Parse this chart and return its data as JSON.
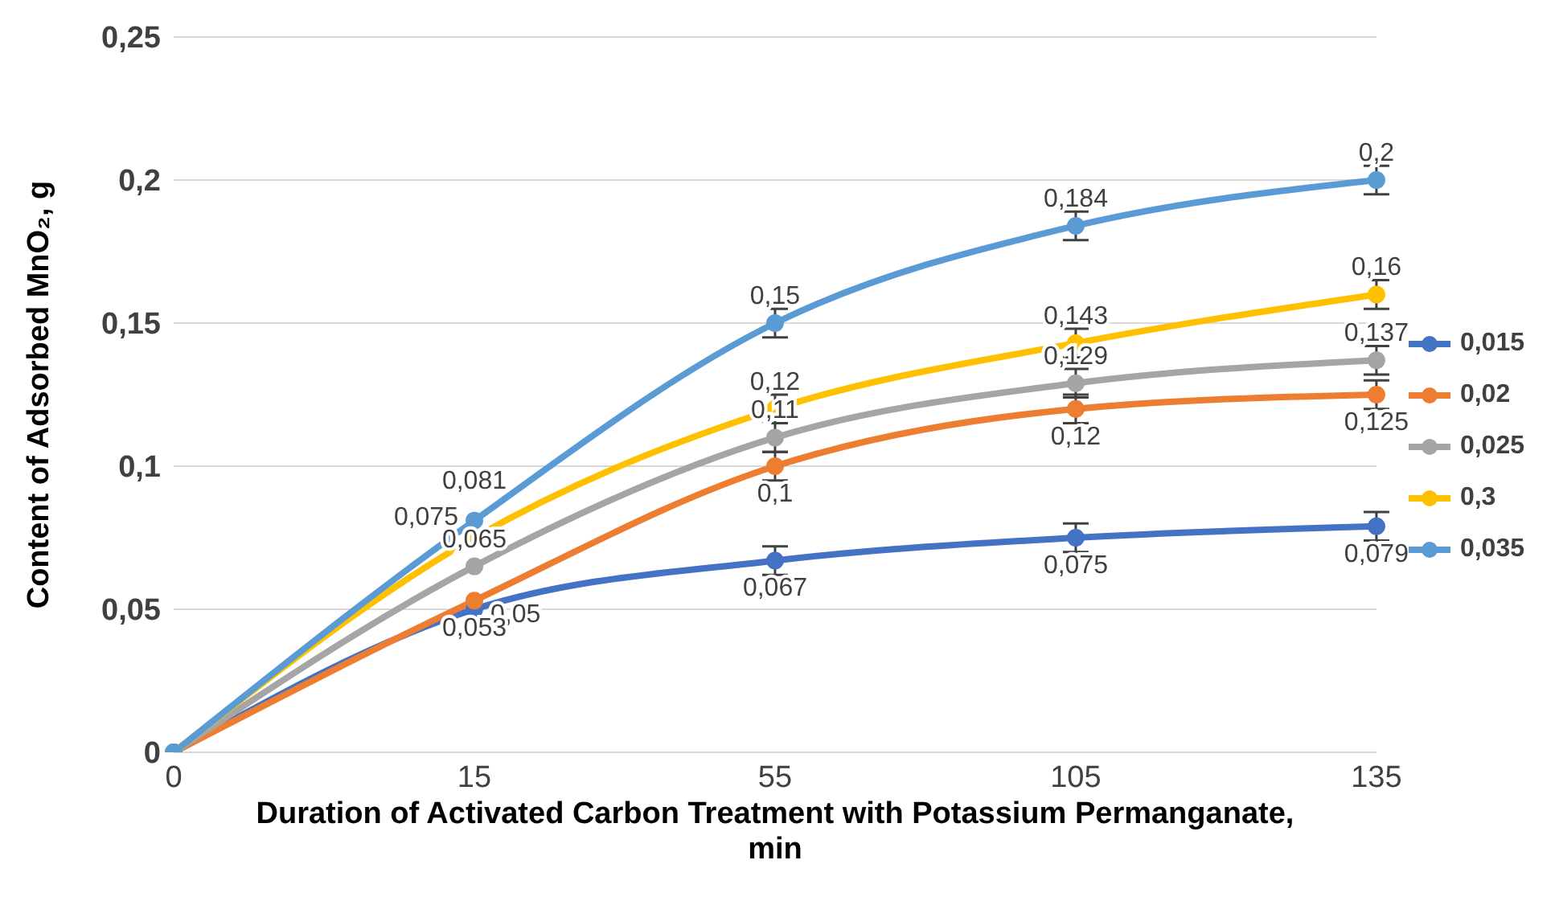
{
  "chart_data": {
    "type": "line",
    "xlabel": "Duration of Activated Carbon Treatment with Potassium Permanganate, min",
    "ylabel": "Content of Adsorbed MnO₂, g",
    "categories": [
      "0",
      "15",
      "55",
      "105",
      "135"
    ],
    "series": [
      {
        "name": "0,015",
        "color": "#4472c4",
        "values": [
          0,
          0.05,
          0.067,
          0.075,
          0.079
        ],
        "value_labels": [
          null,
          "0,05",
          "0,067",
          "0,075",
          "0,079"
        ],
        "errors": [
          null,
          null,
          0.005,
          0.005,
          0.005
        ]
      },
      {
        "name": "0,02",
        "color": "#ed7d31",
        "values": [
          0,
          0.053,
          0.1,
          0.12,
          0.125
        ],
        "value_labels": [
          null,
          "0,053",
          "0,1",
          "0,12",
          "0,125"
        ],
        "errors": [
          null,
          null,
          0.005,
          0.005,
          0.005
        ]
      },
      {
        "name": "0,025",
        "color": "#a5a5a5",
        "values": [
          0,
          0.065,
          0.11,
          0.129,
          0.137
        ],
        "value_labels": [
          null,
          "0,065",
          "0,11",
          "0,129",
          "0,137"
        ],
        "errors": [
          null,
          null,
          0.005,
          0.005,
          0.005
        ]
      },
      {
        "name": "0,3",
        "color": "#ffc000",
        "values": [
          0,
          0.075,
          0.12,
          0.143,
          0.16
        ],
        "value_labels": [
          null,
          "0,075",
          "0,12",
          "0,143",
          "0,16"
        ],
        "errors": [
          null,
          null,
          0.005,
          0.005,
          0.005
        ]
      },
      {
        "name": "0,035",
        "color": "#5b9bd5",
        "values": [
          0,
          0.081,
          0.15,
          0.184,
          0.2
        ],
        "value_labels": [
          null,
          "0,081",
          "0,15",
          "0,184",
          "0,2"
        ],
        "errors": [
          null,
          null,
          0.005,
          0.005,
          0.005
        ]
      }
    ],
    "ylim": [
      0,
      0.25
    ],
    "yticks": [
      0,
      {
        "value": 0.05,
        "label": "0,05"
      },
      {
        "value": 0.1,
        "label": "0,1"
      },
      {
        "value": 0.15,
        "label": "0,15"
      },
      {
        "value": 0.2,
        "label": "0,2"
      },
      {
        "value": 0.25,
        "label": "0,25"
      }
    ],
    "grid": "y",
    "legend": "right",
    "marker": "circle",
    "line_style": "solid"
  }
}
